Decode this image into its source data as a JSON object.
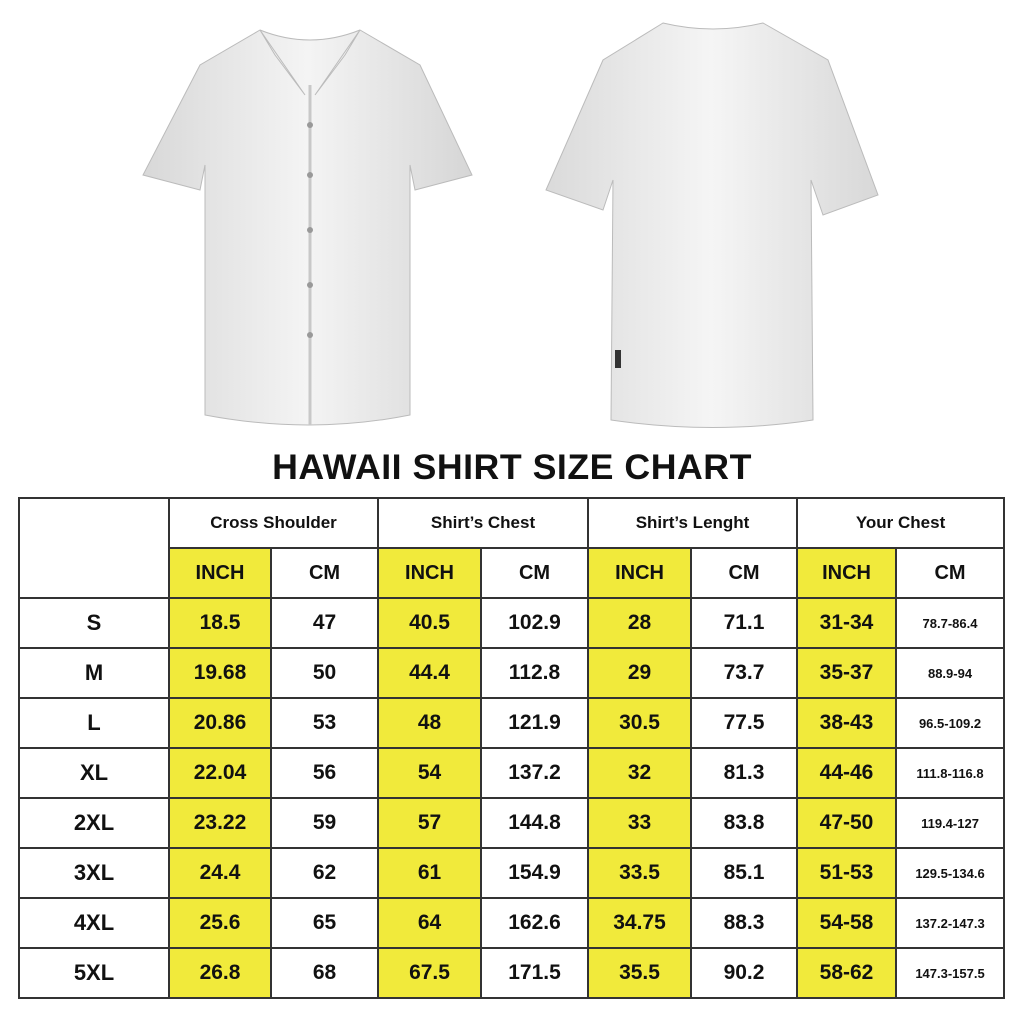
{
  "title": "HAWAII SHIRT SIZE CHART",
  "highlight_color": "#f1ea3b",
  "images": {
    "front": "white-shirt-front",
    "back": "white-shirt-back"
  },
  "chart_data": {
    "type": "table",
    "title": "HAWAII SHIRT SIZE CHART",
    "groups": [
      "Cross Shoulder",
      "Shirt’s Chest",
      "Shirt’s Lenght",
      "Your Chest"
    ],
    "units": [
      "INCH",
      "CM"
    ],
    "rows": [
      {
        "size": "S",
        "values": [
          "18.5",
          "47",
          "40.5",
          "102.9",
          "28",
          "71.1",
          "31-34",
          "78.7-86.4"
        ]
      },
      {
        "size": "M",
        "values": [
          "19.68",
          "50",
          "44.4",
          "112.8",
          "29",
          "73.7",
          "35-37",
          "88.9-94"
        ]
      },
      {
        "size": "L",
        "values": [
          "20.86",
          "53",
          "48",
          "121.9",
          "30.5",
          "77.5",
          "38-43",
          "96.5-109.2"
        ]
      },
      {
        "size": "XL",
        "values": [
          "22.04",
          "56",
          "54",
          "137.2",
          "32",
          "81.3",
          "44-46",
          "111.8-116.8"
        ]
      },
      {
        "size": "2XL",
        "values": [
          "23.22",
          "59",
          "57",
          "144.8",
          "33",
          "83.8",
          "47-50",
          "119.4-127"
        ]
      },
      {
        "size": "3XL",
        "values": [
          "24.4",
          "62",
          "61",
          "154.9",
          "33.5",
          "85.1",
          "51-53",
          "129.5-134.6"
        ]
      },
      {
        "size": "4XL",
        "values": [
          "25.6",
          "65",
          "64",
          "162.6",
          "34.75",
          "88.3",
          "54-58",
          "137.2-147.3"
        ]
      },
      {
        "size": "5XL",
        "values": [
          "26.8",
          "68",
          "67.5",
          "171.5",
          "35.5",
          "90.2",
          "58-62",
          "147.3-157.5"
        ]
      }
    ]
  }
}
